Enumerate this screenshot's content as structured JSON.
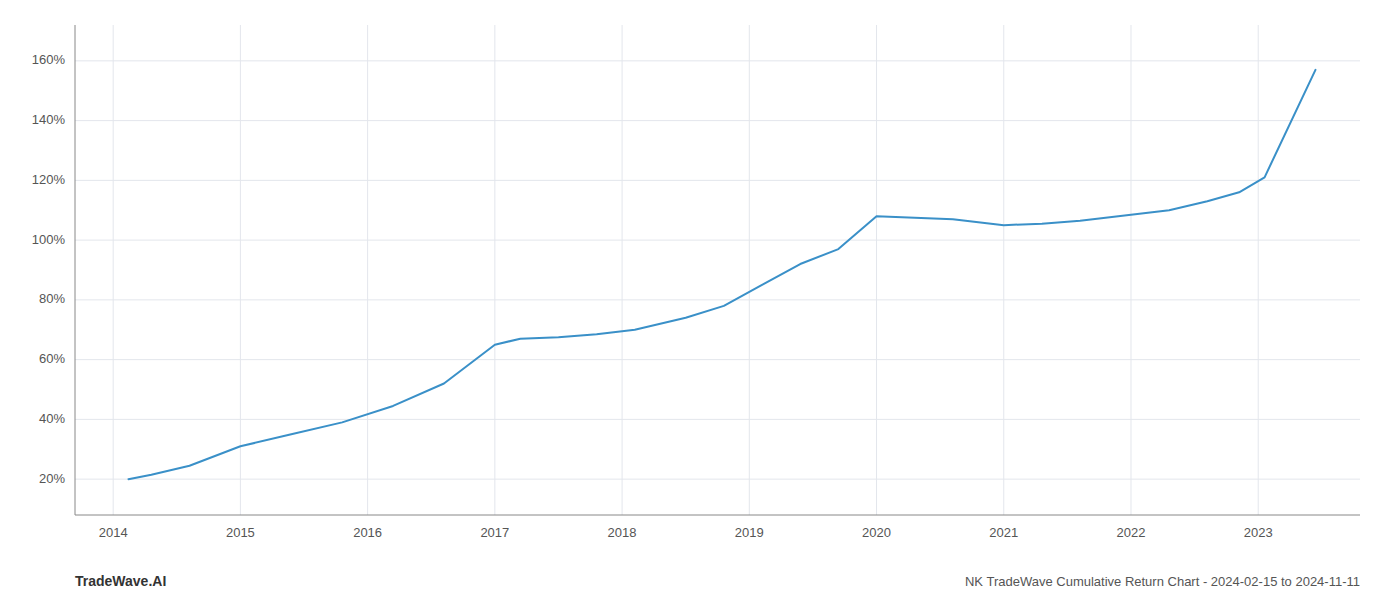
{
  "chart_data": {
    "type": "line",
    "x": [
      2014.12,
      2014.3,
      2014.6,
      2015.0,
      2015.4,
      2015.8,
      2016.2,
      2016.6,
      2017.0,
      2017.2,
      2017.5,
      2017.8,
      2018.1,
      2018.5,
      2018.8,
      2019.1,
      2019.4,
      2019.7,
      2020.0,
      2020.3,
      2020.6,
      2021.0,
      2021.3,
      2021.6,
      2022.0,
      2022.3,
      2022.6,
      2022.85,
      2023.05,
      2023.45
    ],
    "values": [
      20.0,
      21.5,
      24.5,
      31.0,
      35.0,
      39.0,
      44.5,
      52.0,
      65.0,
      67.0,
      67.5,
      68.5,
      70.0,
      74.0,
      78.0,
      85.0,
      92.0,
      97.0,
      108.0,
      107.5,
      107.0,
      105.0,
      105.5,
      106.5,
      108.5,
      110.0,
      113.0,
      116.0,
      121.0,
      157.0
    ],
    "color": "#3a90c8",
    "xlim": [
      2013.7,
      2023.8
    ],
    "xticks": [
      2014,
      2015,
      2016,
      2017,
      2018,
      2019,
      2020,
      2021,
      2022,
      2023
    ],
    "ylim": [
      8,
      172
    ],
    "yticks": [
      {
        "value": 20,
        "label": "20%"
      },
      {
        "value": 40,
        "label": "40%"
      },
      {
        "value": 60,
        "label": "60%"
      },
      {
        "value": 80,
        "label": "80%"
      },
      {
        "value": 100,
        "label": "100%"
      },
      {
        "value": 120,
        "label": "120%"
      },
      {
        "value": 140,
        "label": "140%"
      },
      {
        "value": 160,
        "label": "160%"
      }
    ],
    "grid": true,
    "annotations": [
      "TradeWave.AI",
      "NK TradeWave Cumulative Return Chart - 2024-02-15 to 2024-11-11"
    ]
  }
}
